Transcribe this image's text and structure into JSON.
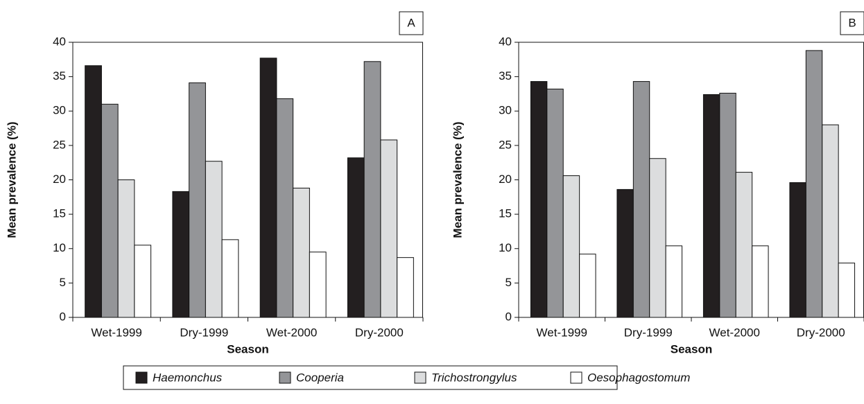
{
  "chart_data": [
    {
      "type": "bar",
      "panel_label": "A",
      "xlabel": "Season",
      "ylabel": "Mean prevalence (%)",
      "categories": [
        "Wet-1999",
        "Dry-1999",
        "Wet-2000",
        "Dry-2000"
      ],
      "series": [
        {
          "name": "Haemonchus",
          "color": "#231f20",
          "values": [
            36.6,
            18.3,
            37.7,
            23.2
          ]
        },
        {
          "name": "Cooperia",
          "color": "#949598",
          "values": [
            31.0,
            34.1,
            31.8,
            37.2
          ]
        },
        {
          "name": "Trichostrongylus",
          "color": "#dcddde",
          "values": [
            20.0,
            22.7,
            18.8,
            25.8
          ]
        },
        {
          "name": "Oesophagostomum",
          "color": "#ffffff",
          "values": [
            10.5,
            11.3,
            9.5,
            8.7
          ]
        }
      ],
      "ylim": [
        0,
        40
      ],
      "yticks": [
        0,
        5,
        10,
        15,
        20,
        25,
        30,
        35,
        40
      ]
    },
    {
      "type": "bar",
      "panel_label": "B",
      "xlabel": "Season",
      "ylabel": "Mean prevalence (%)",
      "categories": [
        "Wet-1999",
        "Dry-1999",
        "Wet-2000",
        "Dry-2000"
      ],
      "series": [
        {
          "color": "#231f20",
          "values": [
            34.3,
            18.6,
            32.4,
            19.6
          ]
        },
        {
          "color": "#949598",
          "values": [
            33.2,
            34.3,
            32.6,
            38.8
          ]
        },
        {
          "color": "#dcddde",
          "values": [
            20.6,
            23.1,
            21.1,
            28.0
          ]
        },
        {
          "color": "#ffffff",
          "values": [
            9.2,
            10.4,
            10.4,
            7.9
          ]
        }
      ],
      "ylim": [
        0,
        40
      ],
      "yticks": [
        0,
        5,
        10,
        15,
        20,
        25,
        30,
        35,
        40
      ]
    }
  ]
}
